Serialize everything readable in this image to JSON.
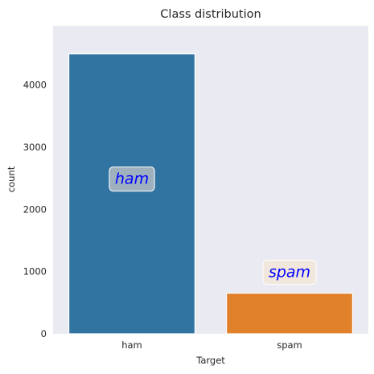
{
  "chart_data": {
    "type": "bar",
    "title": "Class distribution",
    "xlabel": "Target",
    "ylabel": "count",
    "categories": [
      "ham",
      "spam"
    ],
    "values": [
      4500,
      653
    ],
    "colors": [
      "#3274a1",
      "#e1812c"
    ],
    "ylim": [
      0,
      4950
    ],
    "yticks": [
      0,
      1000,
      2000,
      3000,
      4000
    ],
    "grid": false,
    "background": "#eaeaf2",
    "annotations": [
      {
        "text": "ham",
        "x": "ham",
        "y": 2500,
        "box_color": "#c9c9c9",
        "text_color": "#0000ff"
      },
      {
        "text": "spam",
        "x": "spam",
        "y": 1000,
        "box_color": "#f5e6d3",
        "text_color": "#0000ff"
      }
    ]
  }
}
